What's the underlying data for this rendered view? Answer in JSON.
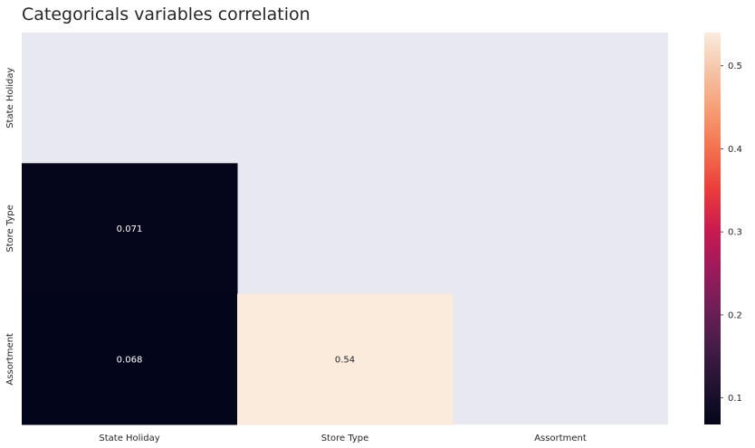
{
  "chart_data": {
    "type": "heatmap",
    "title": "Categoricals variables correlation",
    "xlabel": "",
    "ylabel": "",
    "x_categories": [
      "State Holiday",
      "Store Type",
      "Assortment"
    ],
    "y_categories": [
      "State Holiday",
      "Store Type",
      "Assortment"
    ],
    "mask": "upper-triangle-including-diagonal",
    "cells": [
      {
        "row": "Store Type",
        "col": "State Holiday",
        "value": 0.071,
        "label": "0.071"
      },
      {
        "row": "Assortment",
        "col": "State Holiday",
        "value": 0.068,
        "label": "0.068"
      },
      {
        "row": "Assortment",
        "col": "Store Type",
        "value": 0.54,
        "label": "0.54"
      }
    ],
    "colormap": "rocket",
    "colorbar": {
      "vmin": 0.068,
      "vmax": 0.54,
      "ticks": [
        0.1,
        0.2,
        0.3,
        0.4,
        0.5
      ],
      "tick_labels": [
        "0.1",
        "0.2",
        "0.3",
        "0.4",
        "0.5"
      ],
      "placement": "right"
    },
    "background_color": "#e8e8f0",
    "grid": false
  }
}
